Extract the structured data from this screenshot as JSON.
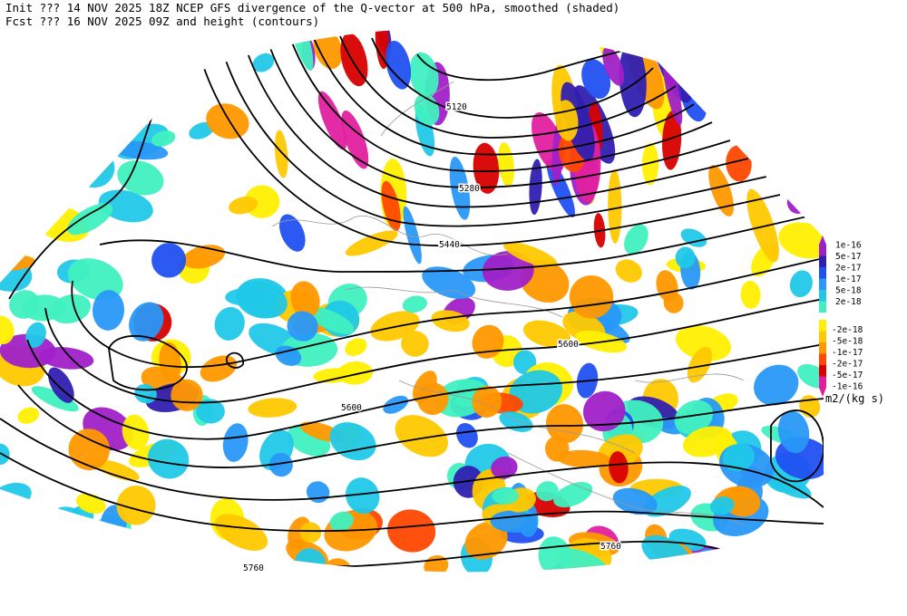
{
  "header": {
    "init": "Init  ??? 14 NOV 2025 18Z  NCEP GFS divergence of the Q-vector at 500 hPa, smoothed (shaded)",
    "fcst": "Fcst ??? 16 NOV 2025 09Z  and height (contours)"
  },
  "contour_labels": [
    "5120",
    "5280",
    "5440",
    "5600",
    "5600",
    "5760",
    "5760"
  ],
  "legend": {
    "units": "m2/(kg s)",
    "positive": [
      {
        "label": "1e-16",
        "color": "#a020c8"
      },
      {
        "label": "5e-17",
        "color": "#3020b0"
      },
      {
        "label": "2e-17",
        "color": "#2050f0"
      },
      {
        "label": "1e-17",
        "color": "#2898f8"
      },
      {
        "label": "5e-18",
        "color": "#20c8e8"
      },
      {
        "label": "2e-18",
        "color": "#40f0c0"
      }
    ],
    "negative": [
      {
        "label": "-2e-18",
        "color": "#fff000"
      },
      {
        "label": "-5e-18",
        "color": "#ffc800"
      },
      {
        "label": "-1e-17",
        "color": "#ff9800"
      },
      {
        "label": "-2e-17",
        "color": "#ff4800"
      },
      {
        "label": "-5e-17",
        "color": "#d80000"
      },
      {
        "label": "-1e-16",
        "color": "#e020a0"
      }
    ]
  }
}
